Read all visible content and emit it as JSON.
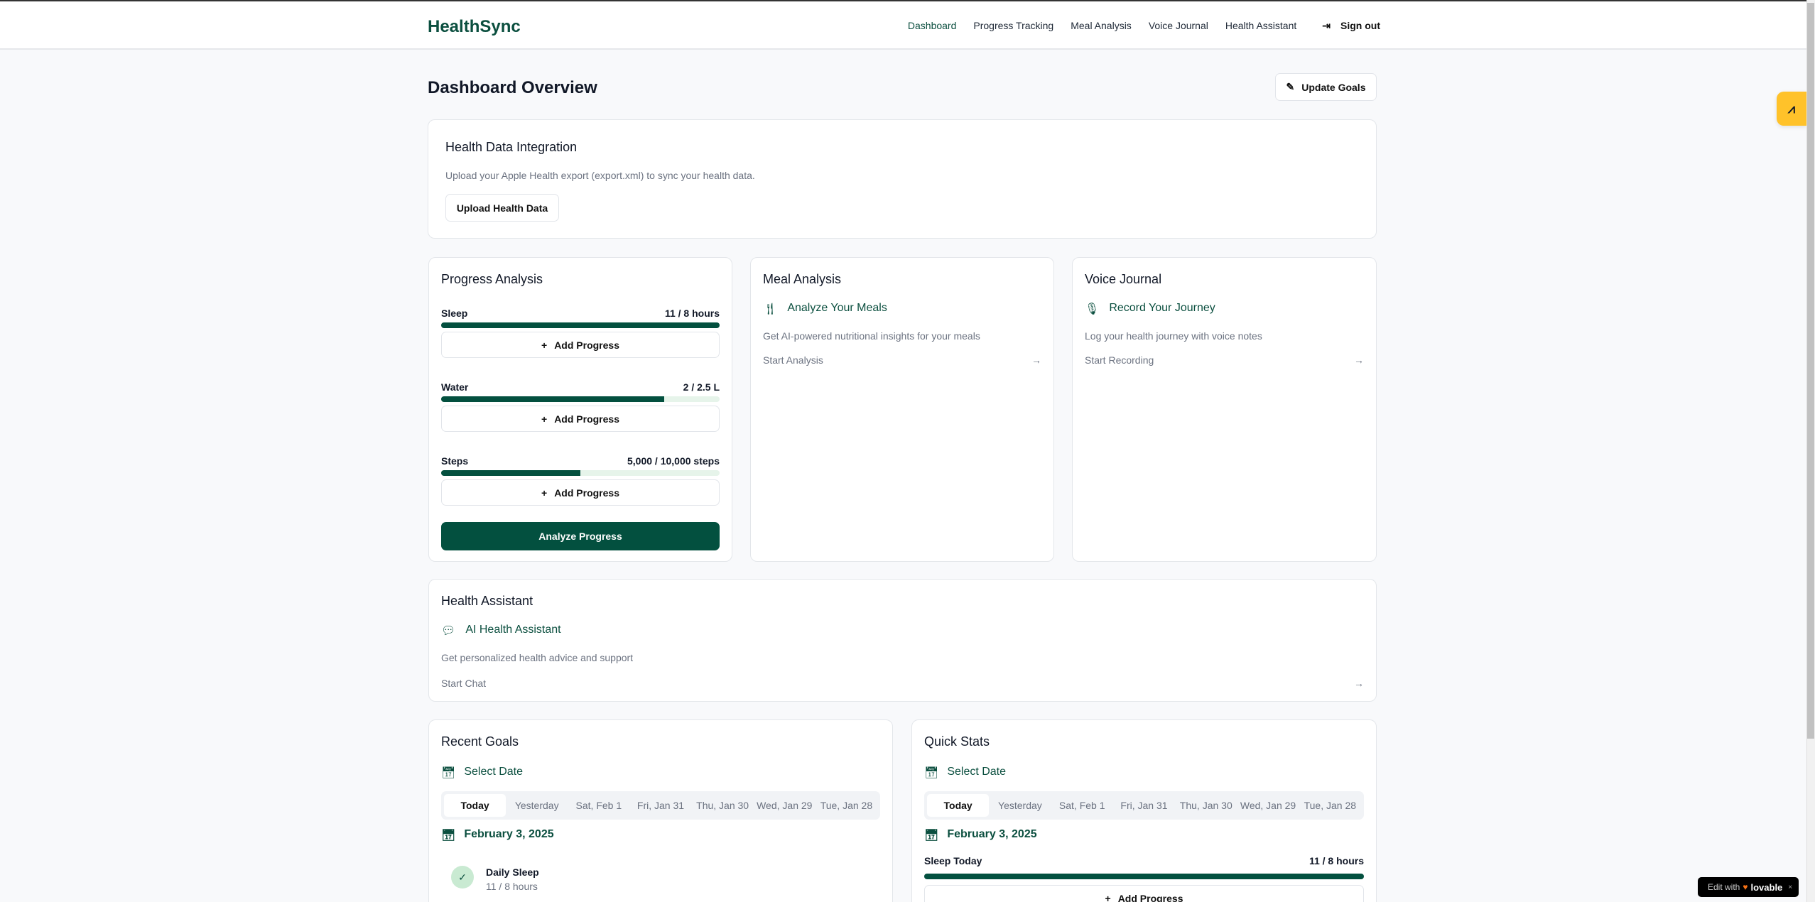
{
  "app": {
    "name": "HealthSync"
  },
  "nav": {
    "items": [
      "Dashboard",
      "Progress Tracking",
      "Meal Analysis",
      "Voice Journal",
      "Health Assistant"
    ],
    "active": "Dashboard",
    "signout": "Sign out"
  },
  "header": {
    "title": "Dashboard Overview",
    "update_goals": "Update Goals"
  },
  "integration": {
    "title": "Health Data Integration",
    "description": "Upload your Apple Health export (export.xml) to sync your health data.",
    "button": "Upload Health Data"
  },
  "progress": {
    "title": "Progress Analysis",
    "items": [
      {
        "label": "Sleep",
        "value": "11 / 8 hours",
        "percent": 100
      },
      {
        "label": "Water",
        "value": "2 / 2.5 L",
        "percent": 80
      },
      {
        "label": "Steps",
        "value": "5,000 / 10,000 steps",
        "percent": 50
      }
    ],
    "add_label": "Add Progress",
    "analyze": "Analyze Progress"
  },
  "meal": {
    "title": "Meal Analysis",
    "heading": "Analyze Your Meals",
    "description": "Get AI-powered nutritional insights for your meals",
    "action": "Start Analysis"
  },
  "voice": {
    "title": "Voice Journal",
    "heading": "Record Your Journey",
    "description": "Log your health journey with voice notes",
    "action": "Start Recording"
  },
  "assistant": {
    "title": "Health Assistant",
    "heading": "AI Health Assistant",
    "description": "Get personalized health advice and support",
    "action": "Start Chat"
  },
  "recent": {
    "title": "Recent Goals",
    "select_date": "Select Date",
    "tabs": [
      "Today",
      "Yesterday",
      "Sat, Feb 1",
      "Fri, Jan 31",
      "Thu, Jan 30",
      "Wed, Jan 29",
      "Tue, Jan 28"
    ],
    "date": "February 3, 2025",
    "goal": {
      "name": "Daily Sleep",
      "value": "11 / 8 hours"
    }
  },
  "quick": {
    "title": "Quick Stats",
    "select_date": "Select Date",
    "tabs": [
      "Today",
      "Yesterday",
      "Sat, Feb 1",
      "Fri, Jan 31",
      "Thu, Jan 30",
      "Wed, Jan 29",
      "Tue, Jan 28"
    ],
    "date": "February 3, 2025",
    "stat": {
      "label": "Sleep Today",
      "value": "11 / 8 hours",
      "percent": 100
    },
    "add_label": "Add Progress"
  },
  "badge": {
    "text": "Edit with",
    "brand": "lovable"
  },
  "colors": {
    "primary": "#03503f",
    "track": "#e6f4ea",
    "widget": "#ffc22a"
  }
}
